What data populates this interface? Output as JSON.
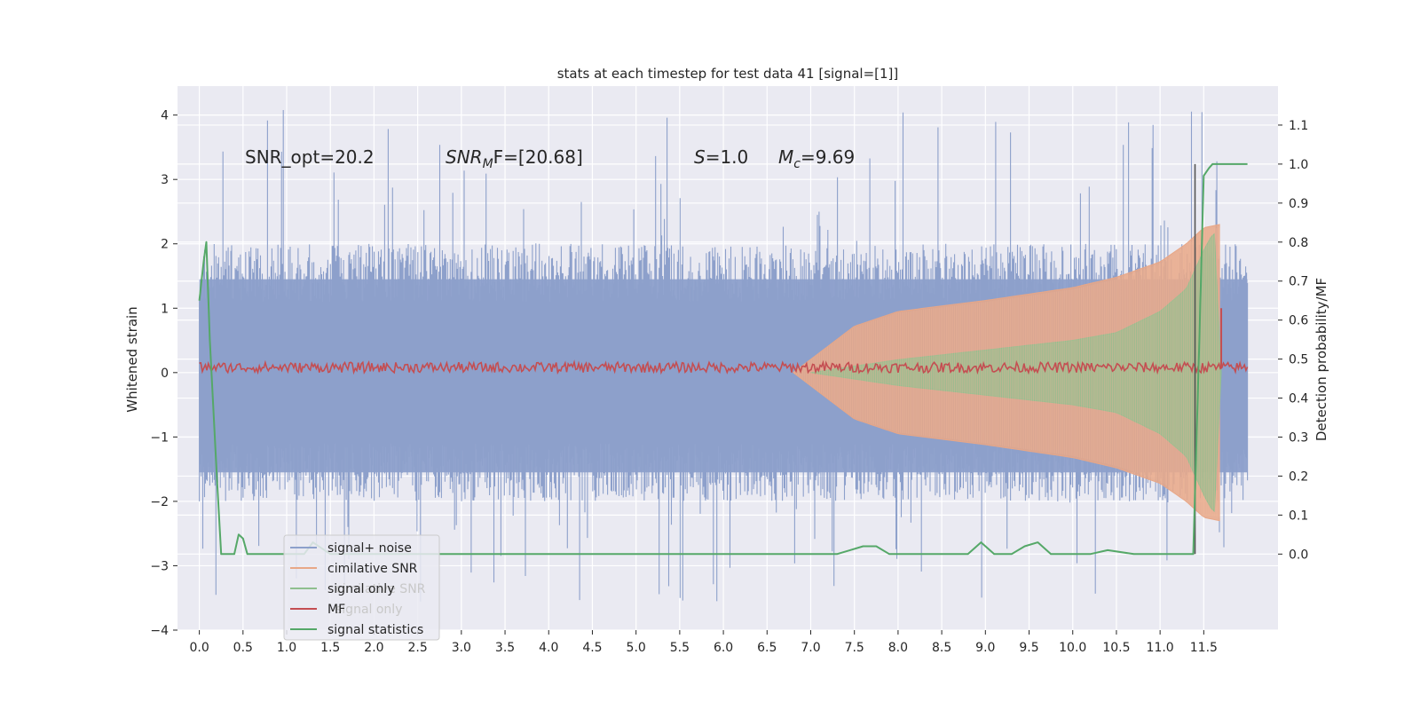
{
  "chart_data": {
    "type": "line",
    "title": "stats at each timestep for test data 41 [signal=[1]]",
    "ylabel": "Whitened strain",
    "y2label": "Detection probability/MF",
    "xlim": [
      -0.25,
      12.35
    ],
    "ylim": [
      -4,
      4.45
    ],
    "y2lim": [
      -0.195,
      1.2
    ],
    "x_ticks": [
      0.0,
      0.5,
      1.0,
      1.5,
      2.0,
      2.5,
      3.0,
      3.5,
      4.0,
      4.5,
      5.0,
      5.5,
      6.0,
      6.5,
      7.0,
      7.5,
      8.0,
      8.5,
      9.0,
      9.5,
      10.0,
      10.5,
      11.0,
      11.5
    ],
    "y_ticks": [
      4,
      3,
      2,
      1,
      0,
      -1,
      -2,
      -3,
      -4
    ],
    "y_tick_labels": [
      "4",
      "3",
      "2",
      "1",
      "0",
      "−1",
      "−2",
      "−3",
      "−4"
    ],
    "y2_ticks": [
      1.1,
      1.0,
      0.9,
      0.8,
      0.7,
      0.6,
      0.5,
      0.4,
      0.3,
      0.2,
      0.1,
      0.0
    ],
    "grid": true,
    "legend_position": "lower-left",
    "annotations": {
      "snr_opt": "SNR_opt=20.2",
      "snr_mf_sym": "SNR",
      "snr_mf_sub": "M",
      "snr_mf_rest": "F=[20.68]",
      "s_sym": "S",
      "s_val": "=1.0",
      "mc_sym": "M",
      "mc_sub": "c",
      "mc_val": "=9.69"
    },
    "series": [
      {
        "name": "signal+ noise",
        "color": "#8da0cb",
        "x_range": [
          0.0,
          12.0
        ],
        "envelope_upper": 2.0,
        "envelope_lower": -2.0,
        "spike_max": 4.1,
        "spike_min": -3.6
      },
      {
        "name": "cimilative SNR",
        "color": "#e8a787",
        "envelope": {
          "x": [
            6.8,
            7.5,
            8.0,
            9.0,
            10.0,
            10.5,
            11.0,
            11.3,
            11.5,
            11.68
          ],
          "y": [
            0.0,
            0.72,
            0.95,
            1.12,
            1.32,
            1.48,
            1.72,
            2.0,
            2.25,
            2.3
          ]
        }
      },
      {
        "name": "signal only",
        "color": "#8fbf8f",
        "envelope": {
          "x": [
            7.0,
            8.0,
            9.0,
            10.0,
            10.5,
            11.0,
            11.3,
            11.5,
            11.62,
            11.7
          ],
          "y": [
            0.0,
            0.2,
            0.35,
            0.5,
            0.62,
            0.95,
            1.3,
            1.9,
            2.2,
            0.0
          ]
        }
      },
      {
        "name": "MF",
        "color": "#c44e52",
        "baseline": 0.08,
        "noise": 0.08,
        "spike": {
          "x": 11.7,
          "y": 1.0
        }
      },
      {
        "name": "signal statistics",
        "color": "#55a868",
        "axis": "right",
        "x": [
          0.0,
          0.05,
          0.08,
          0.12,
          0.2,
          0.25,
          0.3,
          0.35,
          0.4,
          0.45,
          0.5,
          0.55,
          0.6,
          0.7,
          0.8,
          1.0,
          1.2,
          1.3,
          1.5,
          2.0,
          2.5,
          3.0,
          3.5,
          4.0,
          4.5,
          5.0,
          5.5,
          6.0,
          6.5,
          7.0,
          7.3,
          7.45,
          7.6,
          7.75,
          7.9,
          8.3,
          8.5,
          8.8,
          8.95,
          9.1,
          9.3,
          9.45,
          9.6,
          9.75,
          9.9,
          10.2,
          10.4,
          10.7,
          11.0,
          11.3,
          11.38,
          11.45,
          11.5,
          11.56,
          11.6,
          11.7,
          12.0
        ],
        "values": [
          0.65,
          0.75,
          0.8,
          0.55,
          0.2,
          0.0,
          0.0,
          0.0,
          0.0,
          0.05,
          0.04,
          0.0,
          0.0,
          0.0,
          0.0,
          0.0,
          0.0,
          0.03,
          0.0,
          0.0,
          0.0,
          0.0,
          0.0,
          0.0,
          0.0,
          0.0,
          0.0,
          0.0,
          0.0,
          0.0,
          0.0,
          0.01,
          0.02,
          0.02,
          0.0,
          0.0,
          0.0,
          0.0,
          0.03,
          0.0,
          0.0,
          0.02,
          0.03,
          0.0,
          0.0,
          0.0,
          0.01,
          0.0,
          0.0,
          0.0,
          0.0,
          0.55,
          0.97,
          0.99,
          1.0,
          1.0,
          1.0
        ]
      }
    ],
    "legend_entries": [
      "signal+ noise",
      "cimilative SNR",
      "signal only",
      "MF",
      "signal statistics"
    ],
    "legend_ghost_entries": [
      "cimilative SNR",
      "signal only"
    ],
    "vline_x": 11.4
  }
}
